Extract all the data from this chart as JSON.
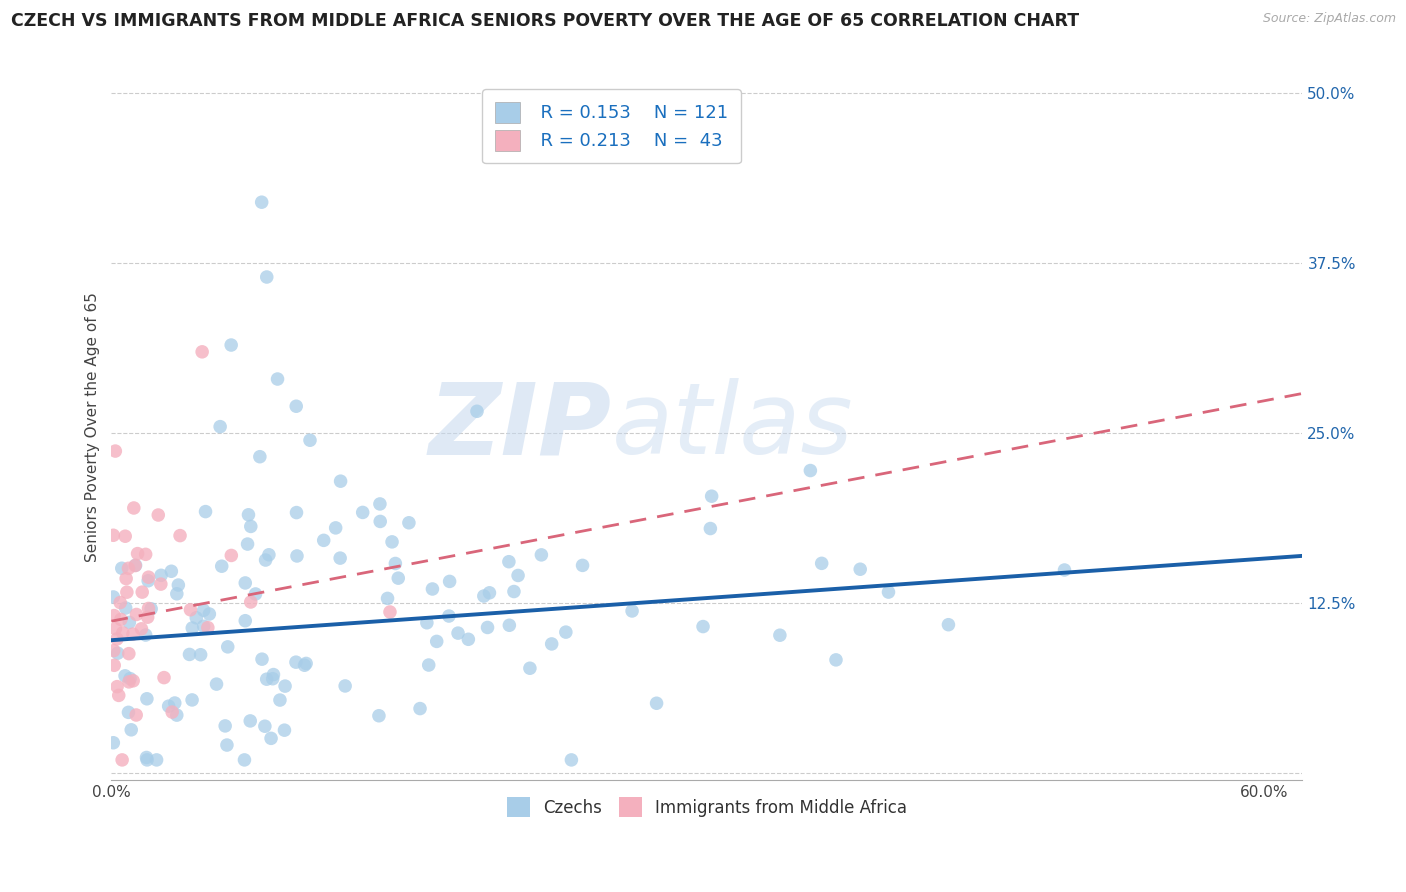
{
  "title": "CZECH VS IMMIGRANTS FROM MIDDLE AFRICA SENIORS POVERTY OVER THE AGE OF 65 CORRELATION CHART",
  "source": "Source: ZipAtlas.com",
  "ylabel": "Seniors Poverty Over the Age of 65",
  "xlim": [
    0.0,
    0.62
  ],
  "ylim": [
    -0.005,
    0.515
  ],
  "xtick_positions": [
    0.0,
    0.1,
    0.2,
    0.3,
    0.4,
    0.5,
    0.6
  ],
  "xticklabels": [
    "0.0%",
    "",
    "",
    "",
    "",
    "",
    "60.0%"
  ],
  "ytick_positions": [
    0.0,
    0.125,
    0.25,
    0.375,
    0.5
  ],
  "ytick_labels": [
    "",
    "12.5%",
    "25.0%",
    "37.5%",
    "50.0%"
  ],
  "czech_color": "#a8cde8",
  "immigrant_color": "#f4b0be",
  "czech_line_color": "#1a5fa8",
  "immigrant_line_color": "#d9667a",
  "legend_R1": "R = 0.153",
  "legend_N1": "N = 121",
  "legend_R2": "R = 0.213",
  "legend_N2": "N =  43",
  "legend_label1": "Czechs",
  "legend_label2": "Immigrants from Middle Africa",
  "watermark_zip": "ZIP",
  "watermark_atlas": "atlas",
  "background_color": "#ffffff",
  "grid_color": "#cccccc",
  "title_fontsize": 12.5,
  "axis_label_fontsize": 11,
  "tick_fontsize": 11,
  "tick_color": "#2166ac",
  "czech_line_intercept": 0.098,
  "czech_line_slope": 0.1,
  "immigrant_line_intercept": 0.112,
  "immigrant_line_slope": 0.27
}
